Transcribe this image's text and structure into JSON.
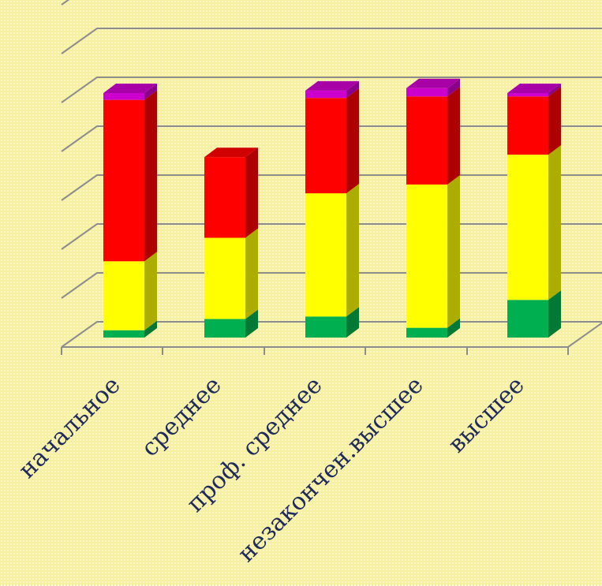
{
  "chart_data": {
    "type": "bar",
    "stacked": true,
    "three_d": true,
    "categories": [
      "начальное",
      "среднее",
      "проф. среднее",
      "незакончен.высшее",
      "высшее"
    ],
    "series": [
      {
        "color": "#00b050",
        "values": [
          1.5,
          3.8,
          4.3,
          2.0,
          7.7
        ]
      },
      {
        "color": "#ffff00",
        "values": [
          14.1,
          16.6,
          25.2,
          29.3,
          29.7
        ]
      },
      {
        "color": "#ff0000",
        "values": [
          33.0,
          16.5,
          19.5,
          18.0,
          11.9
        ]
      },
      {
        "color": "#cc00cc",
        "values": [
          1.4,
          0,
          1.5,
          1.7,
          0.7
        ]
      }
    ],
    "ylim": [
      0,
      70
    ],
    "grid": true,
    "legend": "none",
    "show_tick_labels": false
  }
}
